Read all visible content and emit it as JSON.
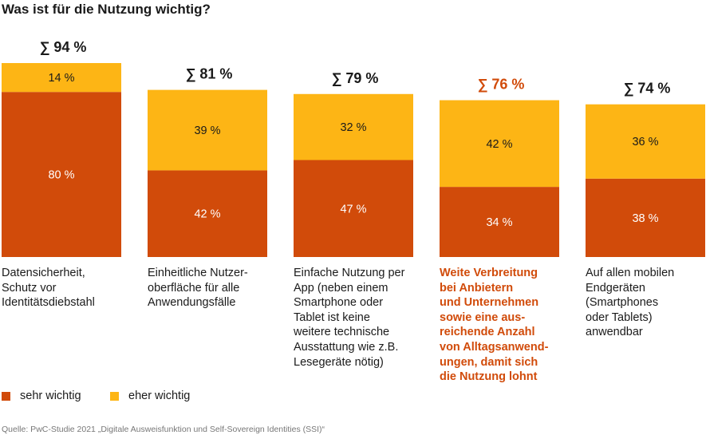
{
  "chart_data": {
    "type": "bar",
    "stacked": true,
    "title": "Was ist für die Nutzung wichtig?",
    "categories": [
      "Datensicherheit, Schutz vor Identitätsdiebstahl",
      "Einheitliche Nutzeroberfläche für alle Anwendungsfälle",
      "Einfache Nutzung per App (neben einem Smartphone oder Tablet ist keine weitere technische Ausstattung wie z.B. Lesegeräte nötig)",
      "Weite Verbreitung bei Anbietern und Unternehmen sowie eine ausreichende Anzahl von Alltagsanwendungen, damit sich die Nutzung lohnt",
      "Auf allen mobilen Endgeräten (Smartphones oder Tablets) anwendbar"
    ],
    "caption_lines": [
      [
        "Datensicherheit,",
        "Schutz vor",
        "Identitätsdiebstahl"
      ],
      [
        "Einheitliche Nutzer-",
        "oberfläche für alle",
        "Anwendungsfälle"
      ],
      [
        "Einfache Nutzung per",
        "App (neben einem",
        "Smartphone oder",
        "Tablet ist keine",
        "weitere technische",
        "Ausstattung wie z.B.",
        "Lesegeräte nötig)"
      ],
      [
        "Weite Verbreitung",
        "bei Anbietern",
        "und Unternehmen",
        "sowie eine aus-",
        "reichende Anzahl",
        "von Alltagsanwend-",
        "ungen, damit sich",
        "die Nutzung lohnt"
      ],
      [
        "Auf allen mobilen",
        "Endgeräten",
        "(Smartphones",
        "oder Tablets)",
        "anwendbar"
      ]
    ],
    "series": [
      {
        "name": "sehr wichtig",
        "color": "#d14b0a",
        "values": [
          80,
          42,
          47,
          34,
          38
        ],
        "labels": [
          "80 %",
          "42 %",
          "47 %",
          "34 %",
          "38 %"
        ]
      },
      {
        "name": "eher wichtig",
        "color": "#fdb515",
        "values": [
          14,
          39,
          32,
          42,
          36
        ],
        "labels": [
          "14 %",
          "39 %",
          "32 %",
          "42 %",
          "36 %"
        ]
      }
    ],
    "totals": [
      94,
      81,
      79,
      76,
      74
    ],
    "total_labels": [
      "∑ 94 %",
      "∑ 81 %",
      "∑ 79 %",
      "∑ 76 %",
      "∑ 74 %"
    ],
    "highlight_index": 3,
    "highlight_color": "#d14b0a",
    "ylim": [
      0,
      100
    ],
    "legend": "bottom-left",
    "grid": false
  },
  "source": "Quelle: PwC-Studie 2021 „Digitale Ausweisfunktion und Self-Sovereign Identities (SSI)“"
}
